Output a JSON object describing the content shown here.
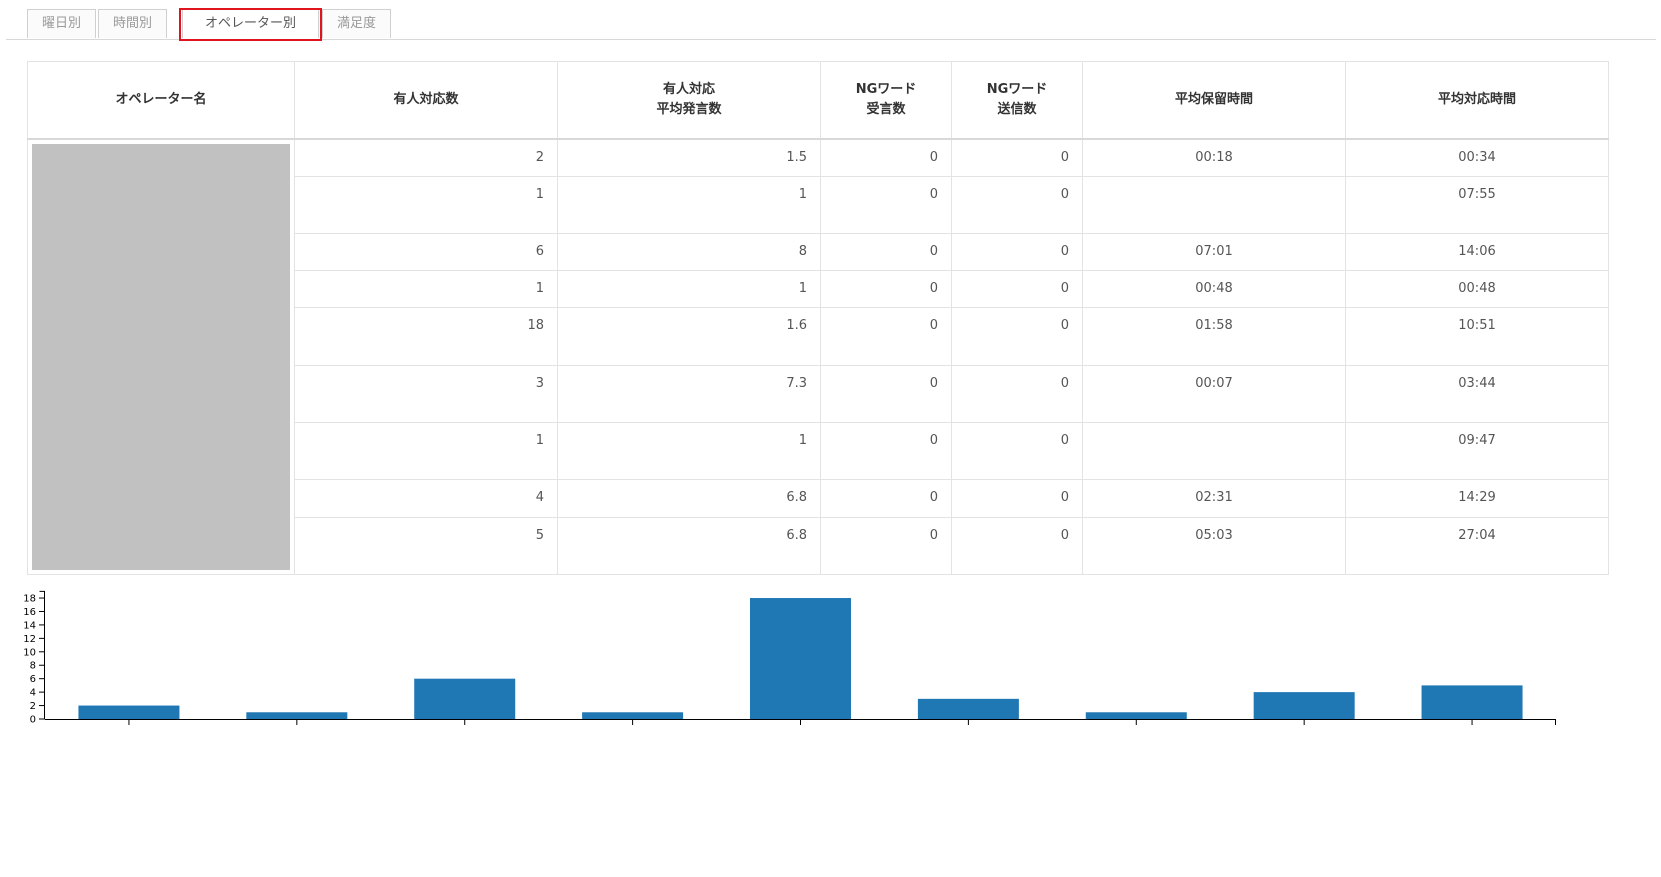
{
  "tabs": [
    {
      "label": "曜日別",
      "active": false
    },
    {
      "label": "時間別",
      "active": false
    },
    {
      "label": "オペレーター別",
      "active": true
    },
    {
      "label": "満足度",
      "active": false
    }
  ],
  "table": {
    "headers": [
      [
        "オペレーター名"
      ],
      [
        "有人対応数"
      ],
      [
        "有人対応",
        "平均発言数"
      ],
      [
        "NGワード",
        "受言数"
      ],
      [
        "NGワード",
        "送信数"
      ],
      [
        "平均保留時間"
      ],
      [
        "平均対応時間"
      ]
    ],
    "rows": [
      {
        "count": "2",
        "avg_msgs": "1.5",
        "ng_recv": "0",
        "ng_sent": "0",
        "avg_hold": "00:18",
        "avg_handle": "00:34"
      },
      {
        "count": "1",
        "avg_msgs": "1",
        "ng_recv": "0",
        "ng_sent": "0",
        "avg_hold": "",
        "avg_handle": "07:55"
      },
      {
        "count": "6",
        "avg_msgs": "8",
        "ng_recv": "0",
        "ng_sent": "0",
        "avg_hold": "07:01",
        "avg_handle": "14:06"
      },
      {
        "count": "1",
        "avg_msgs": "1",
        "ng_recv": "0",
        "ng_sent": "0",
        "avg_hold": "00:48",
        "avg_handle": "00:48"
      },
      {
        "count": "18",
        "avg_msgs": "1.6",
        "ng_recv": "0",
        "ng_sent": "0",
        "avg_hold": "01:58",
        "avg_handle": "10:51"
      },
      {
        "count": "3",
        "avg_msgs": "7.3",
        "ng_recv": "0",
        "ng_sent": "0",
        "avg_hold": "00:07",
        "avg_handle": "03:44"
      },
      {
        "count": "1",
        "avg_msgs": "1",
        "ng_recv": "0",
        "ng_sent": "0",
        "avg_hold": "",
        "avg_handle": "09:47"
      },
      {
        "count": "4",
        "avg_msgs": "6.8",
        "ng_recv": "0",
        "ng_sent": "0",
        "avg_hold": "02:31",
        "avg_handle": "14:29"
      },
      {
        "count": "5",
        "avg_msgs": "6.8",
        "ng_recv": "0",
        "ng_sent": "0",
        "avg_hold": "05:03",
        "avg_handle": "27:04"
      }
    ]
  },
  "colors": {
    "bar": "#1f77b4",
    "highlight": "#e0141e",
    "redaction": "#c1c1c1"
  },
  "chart_data": {
    "type": "bar",
    "categories": [
      "",
      "",
      "",
      "",
      "",
      "",
      "",
      "",
      ""
    ],
    "values": [
      2,
      1,
      6,
      1,
      18,
      3,
      1,
      4,
      5
    ],
    "ylim": [
      0,
      19
    ],
    "yticks": [
      0,
      2,
      4,
      6,
      8,
      10,
      12,
      14,
      16,
      18
    ],
    "title": "",
    "xlabel": "",
    "ylabel": "",
    "grid": false
  }
}
